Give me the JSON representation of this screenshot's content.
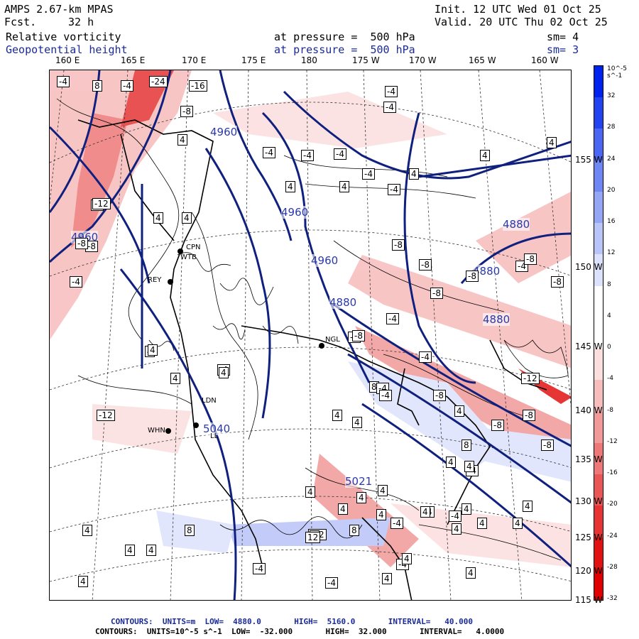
{
  "header": {
    "model": "AMPS 2.67-km MPAS",
    "fcst_label": "Fcst.",
    "fcst_value": "32 h",
    "init": "Init. 12 UTC Wed 01 Oct 25",
    "valid": "Valid. 20 UTC Thu 02 Oct 25",
    "field1": "Relative vorticity",
    "field2": "Geopotential height",
    "pressure1": "at pressure =  500 hPa",
    "pressure2": "at pressure =  500 hPa",
    "sm1": "sm= 4",
    "sm2": "sm= 3"
  },
  "longitude_labels": [
    "160 E",
    "165 E",
    "170 E",
    "175 E",
    "180",
    "175 W",
    "170 W",
    "165 W",
    "160 W"
  ],
  "latitude_labels": [
    "155 W",
    "150 W",
    "145 W",
    "140 W",
    "135 W",
    "130 W",
    "125 W",
    "120 W",
    "115 W"
  ],
  "colorbar": {
    "unit": "10^-5 s^-1",
    "labels": [
      "32",
      "28",
      "24",
      "20",
      "16",
      "12",
      "8",
      "4",
      "0",
      "-4",
      "-8",
      "-12",
      "-16",
      "-20",
      "-24",
      "-28",
      "-32"
    ],
    "colors": [
      "#0022ee",
      "#2244f0",
      "#4a66f2",
      "#6f87f4",
      "#95a6f6",
      "#b9c4f9",
      "#dde2fc",
      "#ffffff",
      "#ffffff",
      "#fcdede",
      "#f7bcbc",
      "#f29a9a",
      "#ee7878",
      "#ea5656",
      "#e63434",
      "#e21212",
      "#e00000"
    ]
  },
  "height_labels": [
    "4960",
    "4960",
    "4960",
    "4880",
    "4880",
    "4880",
    "4880",
    "4960",
    "5021",
    "5040"
  ],
  "vorticity_labels": [
    "-4",
    "8",
    "-4",
    "-24",
    "-16",
    "-8",
    "-4",
    "-4",
    "-4",
    "-4",
    "-4",
    "4",
    "4",
    "-4",
    "4",
    "4",
    "4",
    "-4",
    "-4",
    "-12",
    "-8",
    "-4",
    "-8",
    "-8",
    "-8",
    "-4",
    "-8",
    "-8",
    "-8",
    "-8",
    "-4",
    "-8",
    "-8",
    "-12",
    "-8",
    "-8",
    "-4",
    "4",
    "-8",
    "-4",
    "4",
    "4",
    "4",
    "4",
    "8",
    "4",
    "-12",
    "-4",
    "4",
    "4",
    "8",
    "-4",
    "4",
    "4",
    "4",
    "4",
    "-4",
    "4",
    "-8",
    "4",
    "-12",
    "4",
    "4",
    "-4",
    "4",
    "-4",
    "4",
    "4",
    "4",
    "-4",
    "4",
    "4",
    "4",
    "4",
    "4",
    "4",
    "4",
    "8",
    "12",
    "8",
    "-4",
    "-4",
    "4",
    "4",
    "4",
    "4",
    "4"
  ],
  "stations": [
    "CPN",
    "WTB",
    "REY",
    "NGL",
    "LDN",
    "WHN",
    "LL"
  ],
  "footer": {
    "line1": "CONTOURS:  UNITS=m  LOW=  4880.0       HIGH=  5160.0       INTERVAL=   40.000",
    "line2": "CONTOURS:  UNITS=10^-5 s^-1  LOW=  -32.000       HIGH=  32.000       INTERVAL=   4.0000"
  }
}
